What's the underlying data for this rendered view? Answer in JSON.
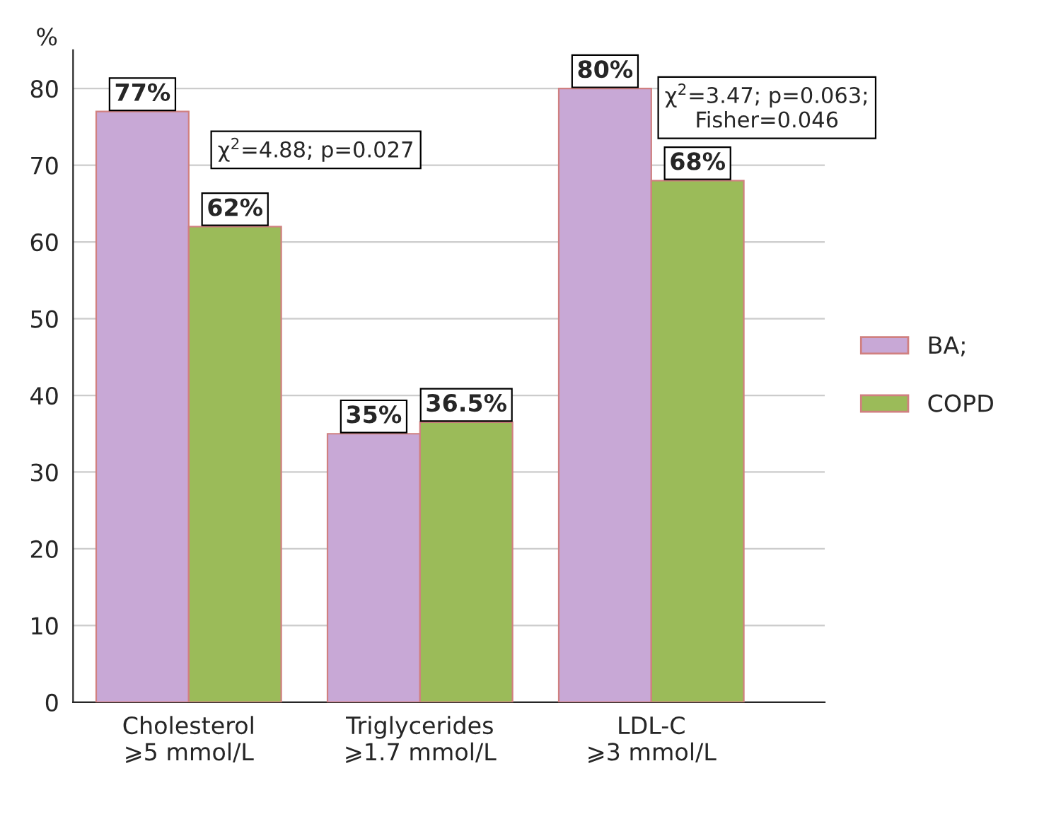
{
  "chart_data": {
    "type": "bar",
    "categories": [
      "Cholesterol\n⩾5 mmol/L",
      "Triglycerides\n⩾1.7 mmol/L",
      "LDL-C\n⩾3 mmol/L"
    ],
    "series": [
      {
        "name": "BA;",
        "color": "#c8a8d6",
        "values": [
          77,
          35,
          80
        ],
        "value_labels": [
          "77%",
          "35%",
          "80%"
        ]
      },
      {
        "name": "COPD",
        "color": "#9bbb59",
        "values": [
          62,
          36.5,
          68
        ],
        "value_labels": [
          "62%",
          "36.5%",
          "68%"
        ]
      }
    ],
    "ylabel": "%",
    "ylim": [
      0,
      85
    ],
    "yticks": [
      0,
      10,
      20,
      30,
      40,
      50,
      60,
      70,
      80
    ],
    "grid": "y",
    "legend": "right",
    "annotations": [
      "χ$^{2}$=4.88; p=0.027",
      "χ$^{2}$=3.47; p=0.063;\nFisher=0.046"
    ]
  }
}
